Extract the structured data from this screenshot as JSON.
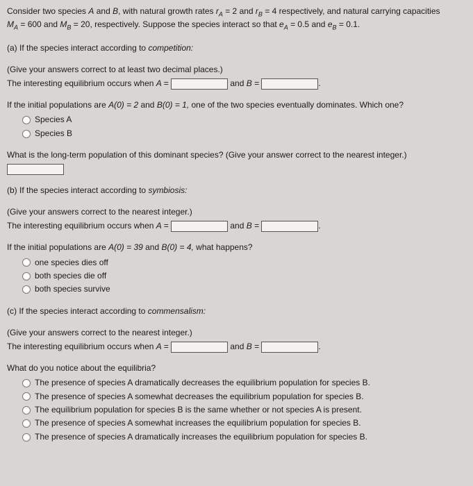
{
  "intro": {
    "line1_a": "Consider two species ",
    "line1_b": " and ",
    "line1_c": ", with natural growth rates ",
    "rA_label": "r",
    "rA_sub": "A",
    "eq1": " = 2 ",
    "and1": " and ",
    "rB_label": "r",
    "rB_sub": "B",
    "eq2": " = 4 ",
    "resp": " respectively, and natural carrying capacities",
    "line2_a": "M",
    "MA_sub": "A",
    "MA_val": " = 600 ",
    "and2": " and ",
    "MB_lbl": "M",
    "MB_sub": "B",
    "MB_val": " = 20, ",
    "line2_b": "respectively. Suppose the species interact so that ",
    "eA_lbl": "e",
    "eA_sub": "A",
    "eA_val": " = 0.5 ",
    "and3": " and ",
    "eB_lbl": "e",
    "eB_sub": "B",
    "eB_val": " = 0.1.",
    "speciesA": "A",
    "speciesB": "B"
  },
  "a": {
    "header_pre": "(a) If the species interact according to ",
    "header_it": "competition:",
    "hint": "(Give your answers correct to at least two decimal places.)",
    "eq_pre": "The interesting equilibrium occurs when ",
    "A_eq": "A = ",
    "and": " and ",
    "B_eq": "B = ",
    "period": ".",
    "q2_pre": "If the initial populations are ",
    "q2_A0": "A(0) = 2 ",
    "q2_and": " and ",
    "q2_B0": "B(0) = 1, ",
    "q2_post": "one of the two species eventually dominates. Which one?",
    "optA": "Species A",
    "optB": "Species B",
    "q3": "What is the long-term population of this dominant species? (Give your answer correct to the nearest integer.)"
  },
  "b": {
    "header_pre": "(b) If the species interact according to ",
    "header_it": "symbiosis:",
    "hint": "(Give your answers correct to the nearest integer.)",
    "eq_pre": "The interesting equilibrium occurs when ",
    "A_eq": "A = ",
    "and": " and ",
    "B_eq": "B = ",
    "period": ".",
    "q2_pre": "If the initial populations are ",
    "q2_A0": "A(0) = 39 ",
    "q2_and": " and ",
    "q2_B0": "B(0) = 4, ",
    "q2_post": "what happens?",
    "opt1": "one species dies off",
    "opt2": "both species die off",
    "opt3": "both species survive"
  },
  "c": {
    "header_pre": "(c) If the species interact according to ",
    "header_it": "commensalism:",
    "hint": "(Give your answers correct to the nearest integer.)",
    "eq_pre": "The interesting equilibrium occurs when ",
    "A_eq": "A = ",
    "and": " and ",
    "B_eq": "B = ",
    "period": ".",
    "q2": "What do you notice about the equilibria?",
    "opt1": "The presence of species A dramatically decreases the equilibrium population for species B.",
    "opt2": "The presence of species A somewhat decreases the equilibrium population for species B.",
    "opt3": "The equilibrium population for species B is the same whether or not species A is present.",
    "opt4": "The presence of species A somewhat increases the equilibrium population for species B.",
    "opt5": "The presence of species A dramatically increases the equilibrium population for species B."
  }
}
